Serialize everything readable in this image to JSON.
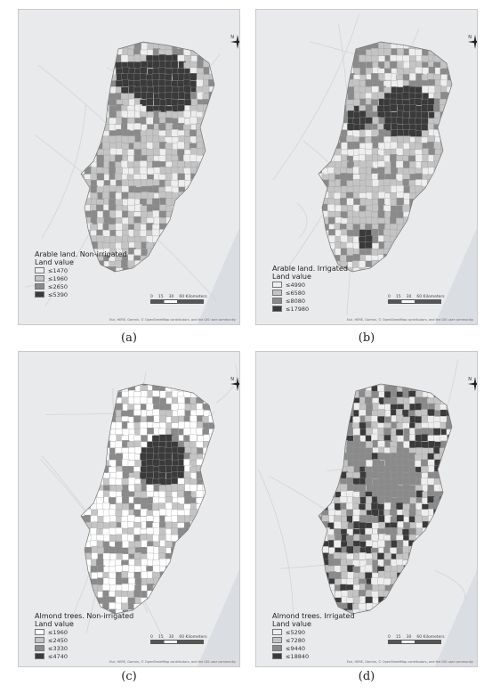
{
  "colors": {
    "background": "#e9eaec",
    "sea": "#dadde1",
    "class1": "#eeeeee",
    "class2": "#c4c4c4",
    "class3": "#8a8a8a",
    "class4": "#3a3a3a",
    "white": "#ffffff",
    "border": "#9a9a9a"
  },
  "panels": [
    {
      "caption": "(a)",
      "legend_title_1": "Arable land. Non-irrigated",
      "legend_title_2": "Land value",
      "classes": [
        "≤1470",
        "≤1960",
        "≤2650",
        "≤5390"
      ],
      "scale_labels": [
        "0",
        "15",
        "30",
        "60 Kilometers"
      ],
      "attribution": "Esri, HERE, Garmin, © OpenStreetMap contributors, and the GIS user community",
      "north": "N"
    },
    {
      "caption": "(b)",
      "legend_title_1": "Arable land. Irrigated",
      "legend_title_2": "Land value",
      "classes": [
        "≤4990",
        "≤6580",
        "≤8080",
        "≤17980"
      ],
      "scale_labels": [
        "0",
        "15",
        "30",
        "60 Kilometers"
      ],
      "attribution": "Esri, HERE, Garmin, © OpenStreetMap contributors, and the GIS user community",
      "north": "N"
    },
    {
      "caption": "(c)",
      "legend_title_1": "Almond trees. Non-irrigated",
      "legend_title_2": "Land value",
      "classes": [
        "≤1960",
        "≤2450",
        "≤3330",
        "≤4740"
      ],
      "scale_labels": [
        "0",
        "15",
        "30",
        "60 Kilometers"
      ],
      "attribution": "Esri, HERE, Garmin, © OpenStreetMap contributors, and the GIS user community",
      "north": "N"
    },
    {
      "caption": "(d)",
      "legend_title_1": "Almond trees. Irrigated",
      "legend_title_2": "Land value",
      "classes": [
        "≤5290",
        "≤7280",
        "≤9440",
        "≤18840"
      ],
      "scale_labels": [
        "0",
        "15",
        "30",
        "60 Kilometers"
      ],
      "attribution": "Esri, HERE, Garmin, © OpenStreetMap contributors, and the GIS user community",
      "north": "N"
    }
  ]
}
